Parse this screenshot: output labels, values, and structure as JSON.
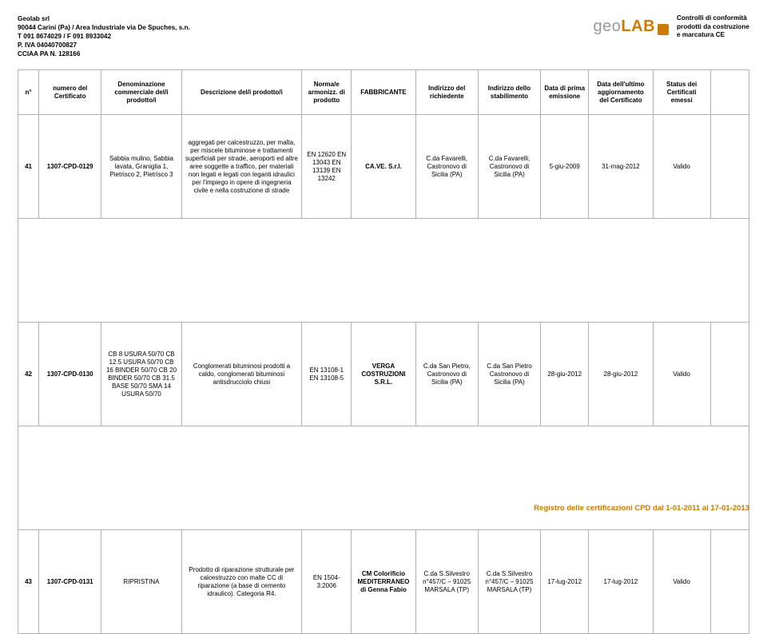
{
  "company": {
    "name": "Geolab srl",
    "address": "90044 Carini (Pa) / Area Industriale via De Spuches, s.n.",
    "phone": "T 091 8674029 / F 091 8933042",
    "vat": "P. IVA 04040700827",
    "cciaa": "CCIAA PA N. 128166"
  },
  "logo": {
    "part1": "geo",
    "part2": "LAB"
  },
  "tagline": {
    "l1": "Controlli di conformità",
    "l2": "prodotti da costruzione",
    "l3": "e marcatura CE"
  },
  "columns": [
    "n°",
    "numero del Certificato",
    "Denominazione commerciale del/i prodotto/i",
    "Descrizione del/i prodotto/i",
    "Norma/e armonizz. di prodotto",
    "FABBRICANTE",
    "Indirizzo del richiedente",
    "Indirizzo dello stabilimento",
    "Data di prima emissione",
    "Data dell'ultimo aggiornamento del Certificato",
    "Status dei Certificati emessi"
  ],
  "rows": [
    {
      "n": "41",
      "cert": "1307-CPD-0129",
      "denom": "Sabbia mulino, Sabbia lavata, Graniglia 1, Pietrisco 2, Pietrisco 3",
      "desc": "aggregati per calcestruzzo, per malta, per miscele bituminose e trattamenti superficiali per strade, aeroporti ed altre aree soggette a traffico, per materiali non legati e legati con leganti idraulici per l'impiego in opere di ingegneria civile e nella costruzione di strade",
      "norma": "EN 12620 EN 13043 EN 13139 EN 13242",
      "fab": "CA.VE. S.r.l.",
      "ind_rich": "C.da Favarelli, Castronovo di Sicilia (PA)",
      "ind_stab": "C.da Favarelli, Castronovo di Sicilia (PA)",
      "prima": "5-giu-2009",
      "agg": "31-mag-2012",
      "status": "Valido"
    },
    {
      "n": "42",
      "cert": "1307-CPD-0130",
      "denom": "CB 8 USURA 50/70 CB 12.5 USURA 50/70 CB 16 BINDER 50/70 CB 20 BINDER 50/70 CB 31.5 BASE 50/70 SMA 14 USURA 50/70",
      "desc": "Conglomerati bituminosi prodotti a caldo, conglomerati bituminosi antisdrucciolo chiusi",
      "norma": "EN 13108-1 EN 13108-5",
      "fab": "VERGA COSTRUZIONI S.R.L.",
      "ind_rich": "C.da San Pietro, Castronovo di Sicilia (PA)",
      "ind_stab": "C.da San Pietro Castronovo di Sicilia (PA)",
      "prima": "28-giu-2012",
      "agg": "28-giu-2012",
      "status": "Valido"
    },
    {
      "n": "43",
      "cert": "1307-CPD-0131",
      "denom": "RIPRISTINA",
      "desc": "Prodotto di riparazione strutturale per calcestruzzo con malte CC di riparazione (a base di cemento idraulico). Categoria R4.",
      "norma": "EN 1504-3:2006",
      "fab": "CM Colorificio MEDITERRANEO di Genna Fabio",
      "ind_rich": "C.da S.Silvestro n°457/C – 91025 MARSALA (TP)",
      "ind_stab": "C.da S.Silvestro n°457/C – 91025 MARSALA (TP)",
      "prima": "17-lug-2012",
      "agg": "17-lug-2012",
      "status": "Valido"
    }
  ],
  "footer": "Registro delle certificazioni CPD dal 1-01-2011 al  17-01-2013"
}
